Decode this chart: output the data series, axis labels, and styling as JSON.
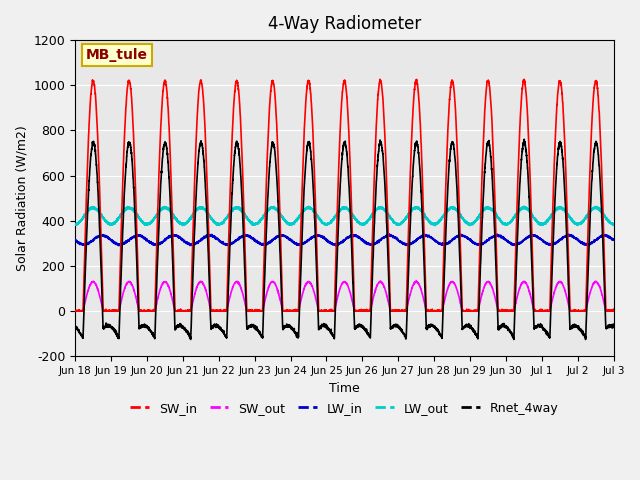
{
  "title": "4-Way Radiometer",
  "xlabel": "Time",
  "ylabel": "Solar Radiation (W/m2)",
  "ylim": [
    -200,
    1200
  ],
  "annotation": "MB_tule",
  "fig_facecolor": "#f0f0f0",
  "plot_bg_color": "#e8e8e8",
  "series": {
    "SW_in": {
      "color": "#ff0000",
      "lw": 1.2
    },
    "SW_out": {
      "color": "#ff00ff",
      "lw": 1.2
    },
    "LW_in": {
      "color": "#0000cc",
      "lw": 1.2
    },
    "LW_out": {
      "color": "#00cccc",
      "lw": 1.5
    },
    "Rnet_4way": {
      "color": "#000000",
      "lw": 1.2
    }
  },
  "x_tick_labels": [
    "Jun 18",
    "Jun 19",
    "Jun 20",
    "Jun 21",
    "Jun 22",
    "Jun 23",
    "Jun 24",
    "Jun 25",
    "Jun 26",
    "Jun 27",
    "Jun 28",
    "Jun 29",
    "Jun 30",
    "Jul 1",
    "Jul 2",
    "Jul 3"
  ],
  "x_tick_positions": [
    0,
    1,
    2,
    3,
    4,
    5,
    6,
    7,
    8,
    9,
    10,
    11,
    12,
    13,
    14,
    15
  ],
  "n_days": 15,
  "samples_per_day": 288,
  "SW_in_peak": 1020,
  "SW_out_peak": 130,
  "LW_in_base": 315,
  "LW_in_amp": 20,
  "LW_out_base": 420,
  "LW_out_amp": 35,
  "yticks": [
    -200,
    0,
    200,
    400,
    600,
    800,
    1000,
    1200
  ],
  "ytick_labels": [
    "-200",
    "0",
    "200",
    "400",
    "600",
    "800",
    "1000",
    "1200"
  ]
}
